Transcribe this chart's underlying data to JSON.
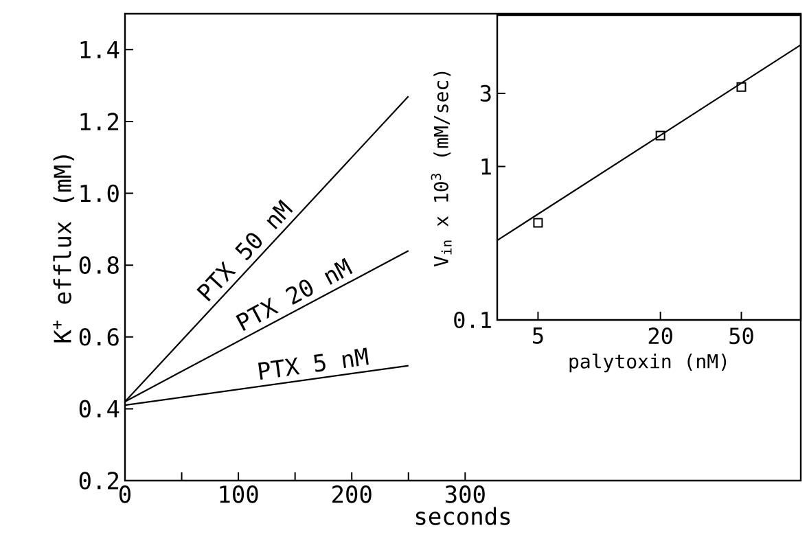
{
  "chart_data": [
    {
      "type": "line",
      "xlabel": "seconds",
      "ylabel": "K$^{+}$ efflux (mM)",
      "xlim": [
        0,
        596
      ],
      "ylim": [
        0.2,
        1.5
      ],
      "xticks": [
        0,
        {
          "value": 50,
          "label": null
        },
        100,
        {
          "value": 150,
          "label": null
        },
        200,
        {
          "value": 250,
          "label": null
        },
        300
      ],
      "yticks": [
        0.2,
        0.4,
        0.6,
        0.8,
        {
          "value": 1,
          "label": "1.0"
        },
        1.2,
        1.4
      ],
      "series": [
        {
          "name": "PTX 50 nM",
          "color": "#000000",
          "x": [
            0,
            250
          ],
          "values": [
            0.42,
            1.27
          ]
        },
        {
          "name": "PTX 20 nM",
          "color": "#000000",
          "x": [
            0,
            250
          ],
          "values": [
            0.42,
            0.84
          ]
        },
        {
          "name": "PTX 5 nM",
          "color": "#000000",
          "x": [
            0,
            250
          ],
          "values": [
            0.41,
            0.52
          ]
        }
      ]
    },
    {
      "type": "scatter",
      "log": "xy",
      "xlabel": "palytoxin (nM)",
      "ylabel": "V$_{in}$ x 10$^{3}$ (mM/sec)",
      "xlim": [
        3.15,
        98
      ],
      "ylim": [
        0.1,
        9.7
      ],
      "xticks": [
        5,
        20,
        50
      ],
      "yticks": [
        0.1,
        1,
        3
      ],
      "series": [
        {
          "color": "#000000",
          "marker": "square",
          "x": [
            5,
            20,
            50
          ],
          "values": [
            0.43,
            1.59,
            3.3
          ]
        },
        {
          "type": "line",
          "color": "#000000",
          "marker": "none",
          "x": [
            3.15,
            98
          ],
          "values": [
            0.33,
            6.2
          ]
        }
      ]
    }
  ]
}
